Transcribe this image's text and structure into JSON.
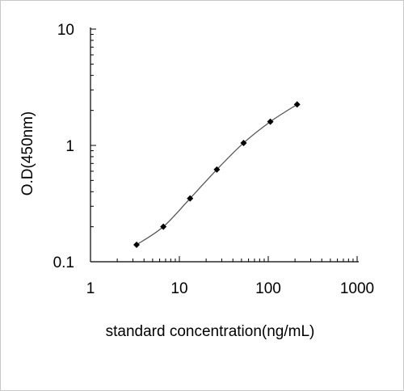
{
  "chart_data": {
    "type": "scatter",
    "title": "",
    "xlabel": "standard concentration(ng/mL)",
    "ylabel": "O.D(450nm)",
    "x_scale": "log",
    "y_scale": "log",
    "xlim": [
      1,
      1000
    ],
    "ylim": [
      0.1,
      10
    ],
    "x_ticks": [
      1,
      10,
      100,
      1000
    ],
    "x_tick_labels": [
      "1",
      "10",
      "100",
      "1000"
    ],
    "y_ticks": [
      0.1,
      1,
      10
    ],
    "y_tick_labels": [
      "0.1",
      "1",
      "10"
    ],
    "grid": false,
    "legend": "none",
    "series": [
      {
        "x": [
          3.3,
          6.6,
          13.2,
          26.4,
          52.8,
          105.6,
          211.2
        ],
        "y": [
          0.14,
          0.2,
          0.35,
          0.62,
          1.05,
          1.6,
          2.25
        ],
        "marker": "diamond",
        "trendline": true,
        "color": "#000000"
      }
    ]
  }
}
